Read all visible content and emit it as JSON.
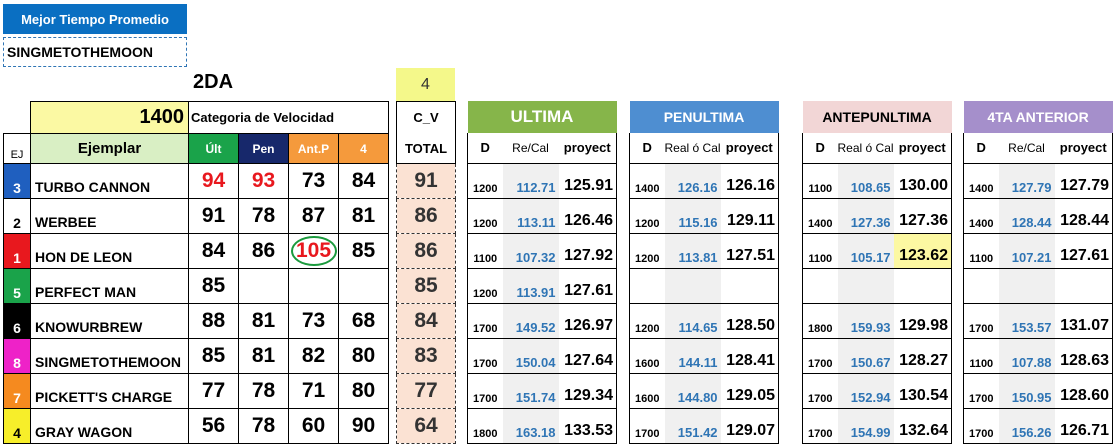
{
  "best_time_label": "Mejor Tiempo Promedio",
  "best_time_horse": "SINGMETOTHEMOON",
  "race_class": "2DA",
  "cv_number": "4",
  "distance": "1400",
  "category_label": "Categoria de Velocidad",
  "headers": {
    "ej": "EJ",
    "ejemplar": "Ejemplar",
    "ult": "Últ",
    "pen": "Pen",
    "antp": "Ant.P",
    "four": "4",
    "cv": "C_V",
    "total": "TOTAL"
  },
  "colors": {
    "post_1": "#e8181e",
    "post_2": "#ffffff",
    "post_3": "#1f5fbf",
    "post_4": "#f7ee2a",
    "post_5": "#1aa34a",
    "post_6": "#000000",
    "post_7": "#f58a1f",
    "post_8": "#ee22c8",
    "ultima": "#86b54a",
    "penultima": "#4e8ed1",
    "antepenultima": "#f2d6d6",
    "cuarta": "#a58fcb"
  },
  "horses": [
    {
      "post": "3",
      "name": "TURBO CANNON",
      "ult": "94",
      "pen": "93",
      "antp": "73",
      "four": "84",
      "total": "91",
      "ult_red": true,
      "pen_red": true,
      "total_red": true
    },
    {
      "post": "2",
      "name": "WERBEE",
      "ult": "91",
      "pen": "78",
      "antp": "87",
      "four": "81",
      "total": "86"
    },
    {
      "post": "1",
      "name": "HON DE LEON",
      "ult": "84",
      "pen": "86",
      "antp": "105",
      "four": "85",
      "total": "86",
      "antp_circled": true
    },
    {
      "post": "5",
      "name": "PERFECT MAN",
      "ult": "85",
      "pen": "",
      "antp": "",
      "four": "",
      "total": "85"
    },
    {
      "post": "6",
      "name": "KNOWURBREW",
      "ult": "88",
      "pen": "81",
      "antp": "73",
      "four": "68",
      "total": "84"
    },
    {
      "post": "8",
      "name": "SINGMETOTHEMOON",
      "ult": "85",
      "pen": "81",
      "antp": "82",
      "four": "80",
      "total": "83"
    },
    {
      "post": "7",
      "name": "PICKETT'S CHARGE",
      "ult": "77",
      "pen": "78",
      "antp": "71",
      "four": "80",
      "total": "77"
    },
    {
      "post": "4",
      "name": "GRAY WAGON",
      "ult": "56",
      "pen": "78",
      "antp": "60",
      "four": "90",
      "total": "64"
    }
  ],
  "races": [
    {
      "title": "ULTIMA",
      "d_label": "D",
      "rc_label": "Re/Cal",
      "pr_label": "proyect",
      "rows": [
        {
          "d": "1200",
          "rc": "112.71",
          "pr": "125.91"
        },
        {
          "d": "1200",
          "rc": "113.11",
          "pr": "126.46"
        },
        {
          "d": "1100",
          "rc": "107.32",
          "pr": "127.92"
        },
        {
          "d": "1200",
          "rc": "113.91",
          "pr": "127.61"
        },
        {
          "d": "1700",
          "rc": "149.52",
          "pr": "126.97"
        },
        {
          "d": "1700",
          "rc": "150.04",
          "pr": "127.64"
        },
        {
          "d": "1700",
          "rc": "151.74",
          "pr": "129.34"
        },
        {
          "d": "1800",
          "rc": "163.18",
          "pr": "133.53"
        }
      ]
    },
    {
      "title": "PENULTIMA",
      "d_label": "D",
      "rc_label": "Real ó Cal",
      "pr_label": "proyect",
      "rows": [
        {
          "d": "1400",
          "rc": "126.16",
          "pr": "126.16"
        },
        {
          "d": "1200",
          "rc": "115.16",
          "pr": "129.11"
        },
        {
          "d": "1200",
          "rc": "113.81",
          "pr": "127.51"
        },
        {
          "d": "",
          "rc": "",
          "pr": ""
        },
        {
          "d": "1200",
          "rc": "114.65",
          "pr": "128.50"
        },
        {
          "d": "1600",
          "rc": "144.11",
          "pr": "128.41"
        },
        {
          "d": "1600",
          "rc": "144.80",
          "pr": "129.05"
        },
        {
          "d": "1700",
          "rc": "151.42",
          "pr": "129.07"
        }
      ]
    },
    {
      "title": "ANTEPUNLTIMA",
      "d_label": "D",
      "rc_label": "Real ó Cal",
      "pr_label": "proyect",
      "rows": [
        {
          "d": "1100",
          "rc": "108.65",
          "pr": "130.00"
        },
        {
          "d": "1400",
          "rc": "127.36",
          "pr": "127.36"
        },
        {
          "d": "1100",
          "rc": "105.17",
          "pr": "123.62",
          "pr_highlight": true
        },
        {
          "d": "",
          "rc": "",
          "pr": ""
        },
        {
          "d": "1800",
          "rc": "159.93",
          "pr": "129.98"
        },
        {
          "d": "1700",
          "rc": "150.67",
          "pr": "128.27"
        },
        {
          "d": "1700",
          "rc": "152.94",
          "pr": "130.54"
        },
        {
          "d": "1700",
          "rc": "154.99",
          "pr": "132.64"
        }
      ]
    },
    {
      "title": "4TA ANTERIOR",
      "d_label": "D",
      "rc_label": "Re/Cal",
      "pr_label": "proyect",
      "rows": [
        {
          "d": "1400",
          "rc": "127.79",
          "pr": "127.79"
        },
        {
          "d": "1400",
          "rc": "128.44",
          "pr": "128.44"
        },
        {
          "d": "1100",
          "rc": "107.21",
          "pr": "127.61"
        },
        {
          "d": "",
          "rc": "",
          "pr": ""
        },
        {
          "d": "1700",
          "rc": "153.57",
          "pr": "131.07"
        },
        {
          "d": "1100",
          "rc": "107.88",
          "pr": "128.63"
        },
        {
          "d": "1700",
          "rc": "150.95",
          "pr": "128.60"
        },
        {
          "d": "1700",
          "rc": "156.26",
          "pr": "126.71"
        }
      ]
    }
  ]
}
